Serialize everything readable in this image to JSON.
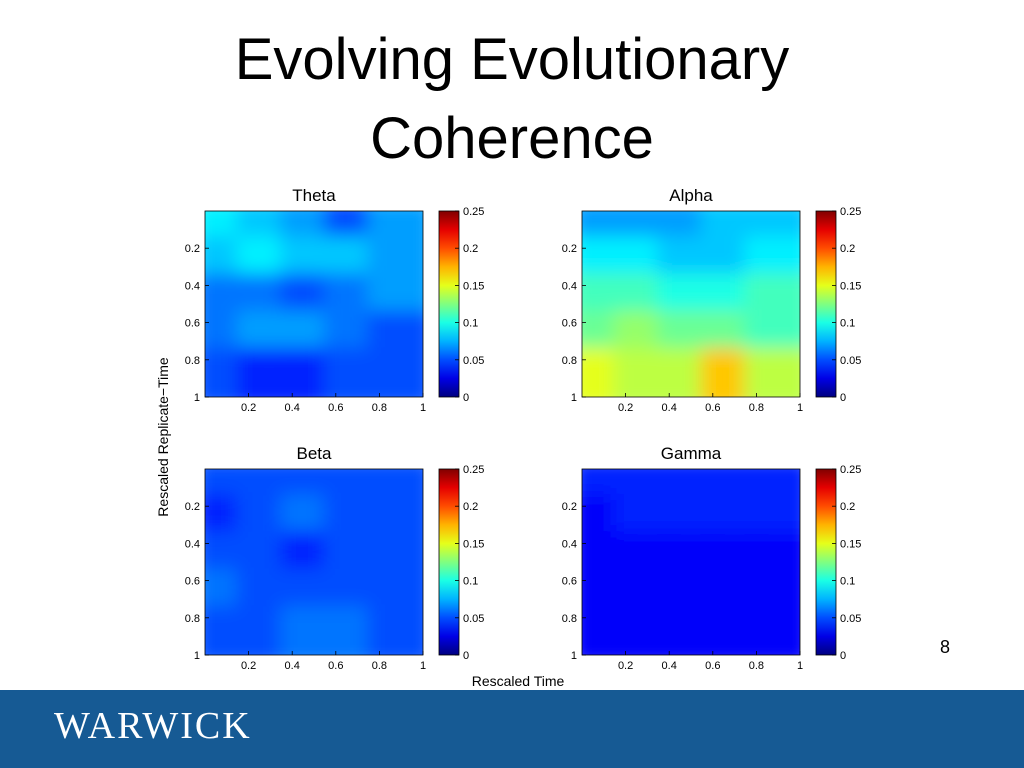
{
  "slide": {
    "title_line1": "Evolving Evolutionary",
    "title_line2": "Coherence",
    "page_number": "8",
    "logo_text": "WARWICK"
  },
  "chart_data": {
    "type": "heatmap",
    "xlabel": "Rescaled Time",
    "ylabel": "Rescaled Replicate−Time",
    "xticks": [
      "0.2",
      "0.4",
      "0.6",
      "0.8",
      "1"
    ],
    "yticks": [
      "0.2",
      "0.4",
      "0.6",
      "0.8",
      "1"
    ],
    "xlim": [
      0,
      1
    ],
    "ylim": [
      0,
      1
    ],
    "colorbar": {
      "colormap": "jet",
      "range": [
        0,
        0.25
      ],
      "ticks": [
        "0",
        "0.05",
        "0.1",
        "0.15",
        "0.2",
        "0.25"
      ]
    },
    "grid": false,
    "panels": [
      {
        "title": "Theta",
        "x": [
          0.1,
          0.3,
          0.5,
          0.7,
          0.9
        ],
        "y": [
          0.1,
          0.3,
          0.5,
          0.7,
          0.9
        ],
        "values": [
          [
            0.09,
            0.08,
            0.07,
            0.05,
            0.07
          ],
          [
            0.08,
            0.09,
            0.08,
            0.08,
            0.07
          ],
          [
            0.06,
            0.06,
            0.05,
            0.06,
            0.07
          ],
          [
            0.06,
            0.07,
            0.07,
            0.06,
            0.05
          ],
          [
            0.05,
            0.04,
            0.04,
            0.05,
            0.05
          ]
        ]
      },
      {
        "title": "Alpha",
        "x": [
          0.1,
          0.3,
          0.5,
          0.7,
          0.9
        ],
        "y": [
          0.1,
          0.3,
          0.5,
          0.7,
          0.9
        ],
        "values": [
          [
            0.07,
            0.07,
            0.07,
            0.08,
            0.08
          ],
          [
            0.09,
            0.09,
            0.08,
            0.08,
            0.09
          ],
          [
            0.11,
            0.11,
            0.1,
            0.1,
            0.11
          ],
          [
            0.12,
            0.13,
            0.12,
            0.12,
            0.11
          ],
          [
            0.15,
            0.14,
            0.14,
            0.17,
            0.14
          ]
        ]
      },
      {
        "title": "Beta",
        "x": [
          0.1,
          0.3,
          0.5,
          0.7,
          0.9
        ],
        "y": [
          0.1,
          0.3,
          0.5,
          0.7,
          0.9
        ],
        "values": [
          [
            0.05,
            0.05,
            0.05,
            0.05,
            0.05
          ],
          [
            0.04,
            0.05,
            0.06,
            0.05,
            0.05
          ],
          [
            0.05,
            0.05,
            0.04,
            0.05,
            0.05
          ],
          [
            0.06,
            0.05,
            0.05,
            0.05,
            0.05
          ],
          [
            0.05,
            0.05,
            0.06,
            0.06,
            0.05
          ]
        ]
      },
      {
        "title": "Gamma",
        "x": [
          0.1,
          0.3,
          0.5,
          0.7,
          0.9
        ],
        "y": [
          0.1,
          0.3,
          0.5,
          0.7,
          0.9
        ],
        "values": [
          [
            0.04,
            0.04,
            0.04,
            0.04,
            0.04
          ],
          [
            0.03,
            0.04,
            0.04,
            0.04,
            0.04
          ],
          [
            0.03,
            0.03,
            0.03,
            0.03,
            0.03
          ],
          [
            0.03,
            0.03,
            0.03,
            0.03,
            0.03
          ],
          [
            0.03,
            0.03,
            0.03,
            0.03,
            0.03
          ]
        ]
      }
    ]
  }
}
